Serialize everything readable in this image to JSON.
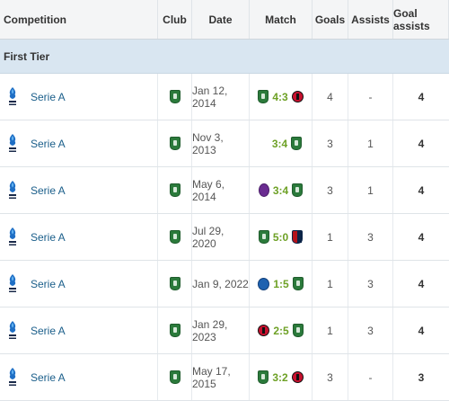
{
  "headers": {
    "competition": "Competition",
    "club": "Club",
    "date": "Date",
    "match": "Match",
    "goals": "Goals",
    "assists": "Assists",
    "goal_assists": "Goal assists"
  },
  "section": {
    "label": "First Tier"
  },
  "colors": {
    "score": "#6ea126",
    "link": "#1a5e8a",
    "section_bg": "#d9e6f1"
  },
  "rows": [
    {
      "competition": "Serie A",
      "club_icon": "sassuolo-crest-icon",
      "date": "Jan 12, 2014",
      "home_icon": "sassuolo-crest-icon",
      "score": "4:3",
      "away_icon": "milan-crest-icon",
      "goals": "4",
      "assists": "-",
      "goal_assists": "4"
    },
    {
      "competition": "Serie A",
      "club_icon": "sassuolo-crest-icon",
      "date": "Nov 3, 2013",
      "home_icon": "sampdoria-crest-icon",
      "score": "3:4",
      "away_icon": "sassuolo-crest-icon",
      "goals": "3",
      "assists": "1",
      "goal_assists": "4"
    },
    {
      "competition": "Serie A",
      "club_icon": "sassuolo-crest-icon",
      "date": "May 6, 2014",
      "home_icon": "fiorentina-crest-icon",
      "score": "3:4",
      "away_icon": "sassuolo-crest-icon",
      "goals": "3",
      "assists": "1",
      "goal_assists": "4"
    },
    {
      "competition": "Serie A",
      "club_icon": "sassuolo-crest-icon",
      "date": "Jul 29, 2020",
      "home_icon": "sassuolo-crest-icon",
      "score": "5:0",
      "away_icon": "genoa-crest-icon",
      "goals": "1",
      "assists": "3",
      "goal_assists": "4"
    },
    {
      "competition": "Serie A",
      "club_icon": "sassuolo-crest-icon",
      "date": "Jan 9, 2022",
      "home_icon": "empoli-crest-icon",
      "score": "1:5",
      "away_icon": "sassuolo-crest-icon",
      "goals": "1",
      "assists": "3",
      "goal_assists": "4"
    },
    {
      "competition": "Serie A",
      "club_icon": "sassuolo-crest-icon",
      "date": "Jan 29, 2023",
      "home_icon": "milan-crest-icon",
      "score": "2:5",
      "away_icon": "sassuolo-crest-icon",
      "goals": "1",
      "assists": "3",
      "goal_assists": "4"
    },
    {
      "competition": "Serie A",
      "club_icon": "sassuolo-crest-icon",
      "date": "May 17, 2015",
      "home_icon": "sassuolo-crest-icon",
      "score": "3:2",
      "away_icon": "milan-crest-icon",
      "goals": "3",
      "assists": "-",
      "goal_assists": "3"
    }
  ]
}
